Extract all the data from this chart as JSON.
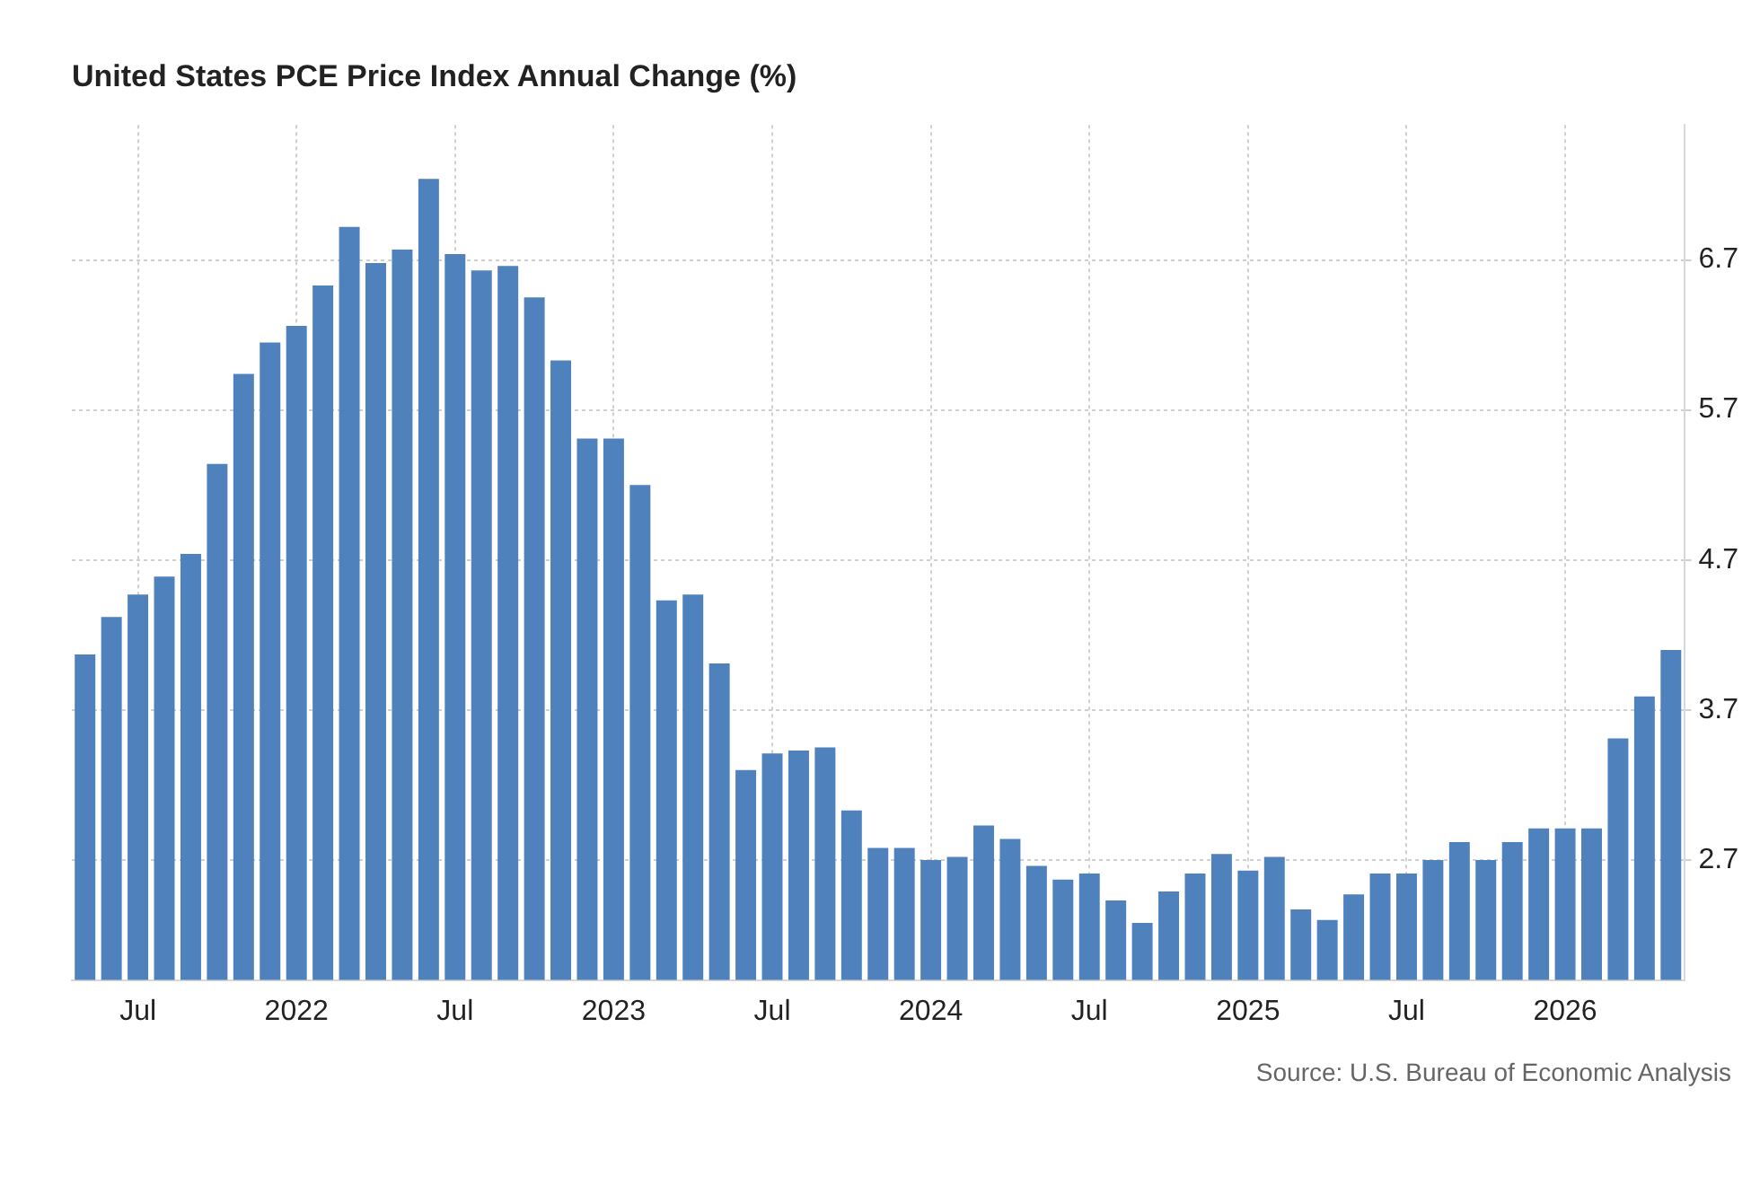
{
  "chart_data": {
    "type": "bar",
    "title": "United States PCE Price Index Annual Change (%)",
    "categories": [
      null,
      null,
      "Jul",
      null,
      null,
      null,
      null,
      null,
      "2022",
      null,
      null,
      null,
      null,
      null,
      "Jul",
      null,
      null,
      null,
      null,
      null,
      "2023",
      null,
      null,
      null,
      null,
      null,
      "Jul",
      null,
      null,
      null,
      null,
      null,
      "2024",
      null,
      null,
      null,
      null,
      null,
      "Jul",
      null,
      null,
      null,
      null,
      null,
      "2025",
      null,
      null,
      null,
      null,
      null,
      "Jul",
      null,
      null,
      null,
      null,
      null,
      "2026",
      null,
      null,
      null,
      null
    ],
    "values": [
      4.07,
      4.32,
      4.47,
      4.59,
      4.74,
      5.34,
      5.94,
      6.15,
      6.26,
      6.53,
      6.92,
      6.68,
      6.77,
      7.24,
      6.74,
      6.63,
      6.66,
      6.45,
      6.03,
      5.51,
      5.51,
      5.2,
      4.43,
      4.47,
      4.01,
      3.3,
      3.41,
      3.43,
      3.45,
      3.03,
      2.78,
      2.78,
      2.7,
      2.72,
      2.93,
      2.84,
      2.66,
      2.57,
      2.61,
      2.43,
      2.28,
      2.49,
      2.61,
      2.74,
      2.63,
      2.72,
      2.37,
      2.3,
      2.47,
      2.61,
      2.61,
      2.7,
      2.82,
      2.7,
      2.82,
      2.91,
      2.91,
      2.91,
      3.51,
      3.79,
      4.1
    ],
    "color": "#4f81bd",
    "ylim": [
      1.9,
      7.6
    ],
    "yticks": [
      2.7,
      3.7,
      4.7,
      5.7,
      6.7
    ],
    "grid": true,
    "annotations": [
      "Source: U.S. Bureau of Economic Analysis"
    ]
  }
}
